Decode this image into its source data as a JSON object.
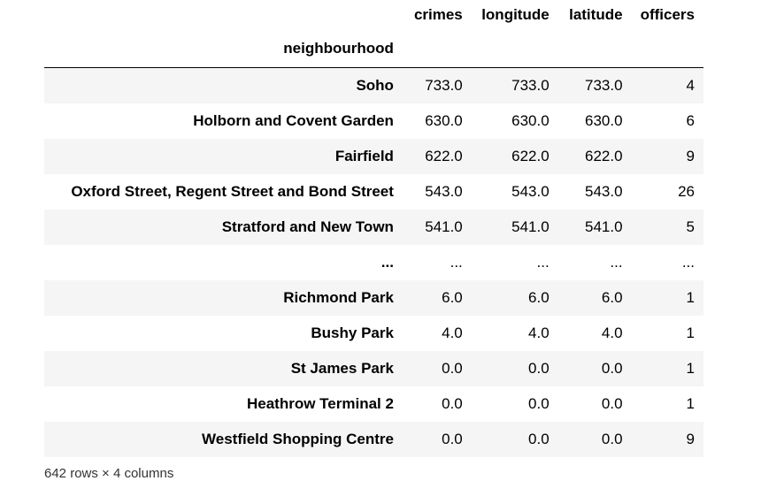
{
  "table": {
    "columns": [
      "crimes",
      "longitude",
      "latitude",
      "officers"
    ],
    "index_name": "neighbourhood",
    "rows": [
      {
        "neighbourhood": "Soho",
        "crimes": "733.0",
        "longitude": "733.0",
        "latitude": "733.0",
        "officers": "4"
      },
      {
        "neighbourhood": "Holborn and Covent Garden",
        "crimes": "630.0",
        "longitude": "630.0",
        "latitude": "630.0",
        "officers": "6"
      },
      {
        "neighbourhood": "Fairfield",
        "crimes": "622.0",
        "longitude": "622.0",
        "latitude": "622.0",
        "officers": "9"
      },
      {
        "neighbourhood": "Oxford Street, Regent Street and Bond Street",
        "crimes": "543.0",
        "longitude": "543.0",
        "latitude": "543.0",
        "officers": "26"
      },
      {
        "neighbourhood": "Stratford and New Town",
        "crimes": "541.0",
        "longitude": "541.0",
        "latitude": "541.0",
        "officers": "5"
      },
      {
        "neighbourhood": "...",
        "crimes": "...",
        "longitude": "...",
        "latitude": "...",
        "officers": "..."
      },
      {
        "neighbourhood": "Richmond Park",
        "crimes": "6.0",
        "longitude": "6.0",
        "latitude": "6.0",
        "officers": "1"
      },
      {
        "neighbourhood": "Bushy Park",
        "crimes": "4.0",
        "longitude": "4.0",
        "latitude": "4.0",
        "officers": "1"
      },
      {
        "neighbourhood": "St James Park",
        "crimes": "0.0",
        "longitude": "0.0",
        "latitude": "0.0",
        "officers": "1"
      },
      {
        "neighbourhood": "Heathrow Terminal 2",
        "crimes": "0.0",
        "longitude": "0.0",
        "latitude": "0.0",
        "officers": "1"
      },
      {
        "neighbourhood": "Westfield Shopping Centre",
        "crimes": "0.0",
        "longitude": "0.0",
        "latitude": "0.0",
        "officers": "9"
      }
    ]
  },
  "footer": "642 rows × 4 columns"
}
